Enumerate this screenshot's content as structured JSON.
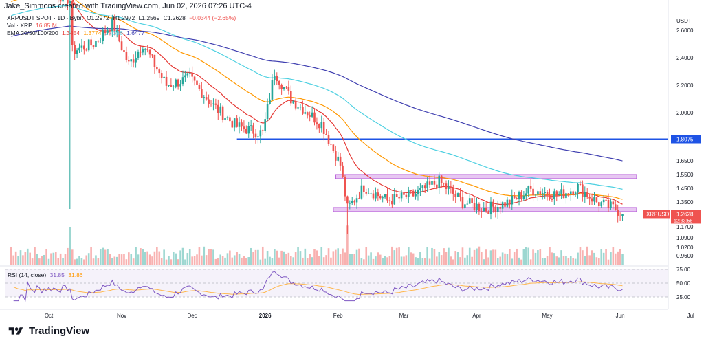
{
  "header": {
    "credit": "Jake_Simmons created with TradingView.com, Jun 02, 2026 07:26 UTC-4"
  },
  "legend": {
    "symbol": "XRPUSDT SPOT · 1D · Bybit",
    "open": "O1.2972",
    "high": "H1.2972",
    "low": "L1.2569",
    "close": "C1.2628",
    "change": "−0.0344 (−2.65%)",
    "vol_label": "Vol · XRP",
    "vol_value": "16.85 M",
    "ema_label": "EMA 20/50/100/200",
    "ema_values": [
      "1.3454",
      "1.3774",
      "1.4386",
      "1.6477"
    ]
  },
  "rsi": {
    "label": "RSI (14, close)",
    "value": "31.85",
    "value2": "31.86"
  },
  "brand": {
    "name": "TradingView"
  },
  "colors": {
    "up": "#26a69a",
    "down": "#ef5350",
    "ema20": "#e53935",
    "ema50": "#ff9800",
    "ema100": "#4dd0e1",
    "ema200": "#3f3fb0",
    "level": "#1e53e5",
    "zone": "#d499e8",
    "rsi": "#7e57c2"
  },
  "chart_data": {
    "type": "candlestick",
    "currency": "USDT",
    "price_ticks": [
      "2.6000",
      "2.4000",
      "2.2000",
      "2.0000",
      "1.8075",
      "1.6500",
      "1.5500",
      "1.4500",
      "1.3500",
      "1.2628",
      "1.1700",
      "1.0900",
      "1.0200",
      "0.9600"
    ],
    "price_tick_values": [
      2.6,
      2.4,
      2.2,
      2.0,
      1.8075,
      1.65,
      1.55,
      1.45,
      1.35,
      1.2628,
      1.17,
      1.09,
      1.02,
      0.96
    ],
    "x_labels": [
      "Oct",
      "Nov",
      "Dec",
      "2026",
      "Feb",
      "Mar",
      "Apr",
      "May",
      "Jun",
      "Jul"
    ],
    "price_label": {
      "symbol": "XRPUSDT",
      "price": "1.2628",
      "countdown": "12:33:58"
    },
    "horizontal_level": {
      "price": 1.8075,
      "label": "1.8075"
    },
    "zones": [
      {
        "from": 1.52,
        "to": 1.55
      },
      {
        "from": 1.28,
        "to": 1.31
      }
    ],
    "rsi_ticks": [
      "75.00",
      "50.00",
      "25.00"
    ],
    "rsi_range": [
      25,
      75
    ],
    "ohlc_waypoints": [
      [
        "2025-09-15",
        2.99
      ],
      [
        "2025-09-29",
        2.9
      ],
      [
        "2025-10-10",
        2.82
      ],
      [
        "2025-10-11",
        2.45
      ],
      [
        "2025-10-20",
        2.5
      ],
      [
        "2025-10-28",
        2.65
      ],
      [
        "2025-11-04",
        2.35
      ],
      [
        "2025-11-10",
        2.5
      ],
      [
        "2025-11-20",
        2.2
      ],
      [
        "2025-11-30",
        2.25
      ],
      [
        "2025-12-10",
        2.05
      ],
      [
        "2025-12-20",
        1.9
      ],
      [
        "2025-12-31",
        1.85
      ],
      [
        "2026-01-05",
        2.3
      ],
      [
        "2026-01-12",
        2.1
      ],
      [
        "2026-01-25",
        1.92
      ],
      [
        "2026-02-02",
        1.62
      ],
      [
        "2026-02-05",
        1.3
      ],
      [
        "2026-02-12",
        1.46
      ],
      [
        "2026-02-22",
        1.36
      ],
      [
        "2026-03-05",
        1.4
      ],
      [
        "2026-03-16",
        1.5
      ],
      [
        "2026-03-26",
        1.35
      ],
      [
        "2026-04-05",
        1.3
      ],
      [
        "2026-04-15",
        1.35
      ],
      [
        "2026-04-24",
        1.44
      ],
      [
        "2026-05-06",
        1.4
      ],
      [
        "2026-05-14",
        1.46
      ],
      [
        "2026-05-22",
        1.35
      ],
      [
        "2026-05-30",
        1.3
      ],
      [
        "2026-06-02",
        1.2628
      ]
    ]
  }
}
